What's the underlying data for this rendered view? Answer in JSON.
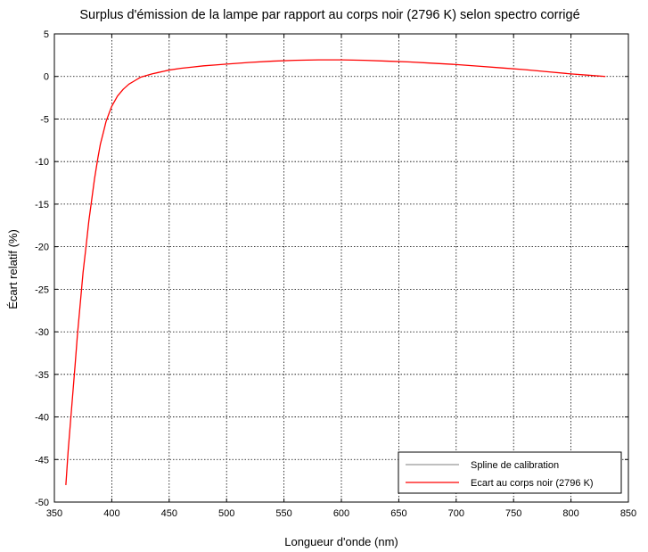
{
  "chart_data": {
    "type": "line",
    "title": "Surplus d'émission de la lampe par rapport au corps noir (2796 K) selon spectro corrigé",
    "xlabel": "Longueur d'onde (nm)",
    "ylabel": "Écart relatif (%)",
    "xlim": [
      350,
      850
    ],
    "ylim": [
      -50,
      5
    ],
    "xticks": [
      350,
      400,
      450,
      500,
      550,
      600,
      650,
      700,
      750,
      800,
      850
    ],
    "yticks": [
      5,
      0,
      -5,
      -10,
      -15,
      -20,
      -25,
      -30,
      -35,
      -40,
      -45,
      -50
    ],
    "grid": true,
    "legend_position": "bottom-right",
    "series": [
      {
        "name": "Spline de calibration",
        "color": "#999999",
        "x": [],
        "y": []
      },
      {
        "name": "Ecart au corps noir (2796 K)",
        "color": "#ff0000",
        "x": [
          360,
          362,
          365,
          368,
          370,
          372,
          375,
          378,
          380,
          383,
          385,
          388,
          390,
          393,
          395,
          398,
          400,
          405,
          410,
          415,
          420,
          425,
          430,
          435,
          440,
          445,
          450,
          460,
          470,
          480,
          490,
          500,
          520,
          540,
          560,
          580,
          600,
          620,
          640,
          660,
          680,
          700,
          720,
          740,
          760,
          780,
          800,
          815,
          830
        ],
        "y": [
          -48,
          -44,
          -39,
          -34,
          -30.5,
          -27.5,
          -23,
          -19.5,
          -17,
          -14,
          -12,
          -9.5,
          -8,
          -6.4,
          -5.3,
          -4.2,
          -3.5,
          -2.3,
          -1.5,
          -0.9,
          -0.5,
          -0.1,
          0.1,
          0.3,
          0.45,
          0.6,
          0.75,
          0.95,
          1.1,
          1.25,
          1.35,
          1.45,
          1.65,
          1.8,
          1.9,
          1.95,
          1.95,
          1.9,
          1.8,
          1.7,
          1.55,
          1.4,
          1.2,
          1.0,
          0.8,
          0.55,
          0.3,
          0.15,
          0.0
        ]
      }
    ]
  }
}
